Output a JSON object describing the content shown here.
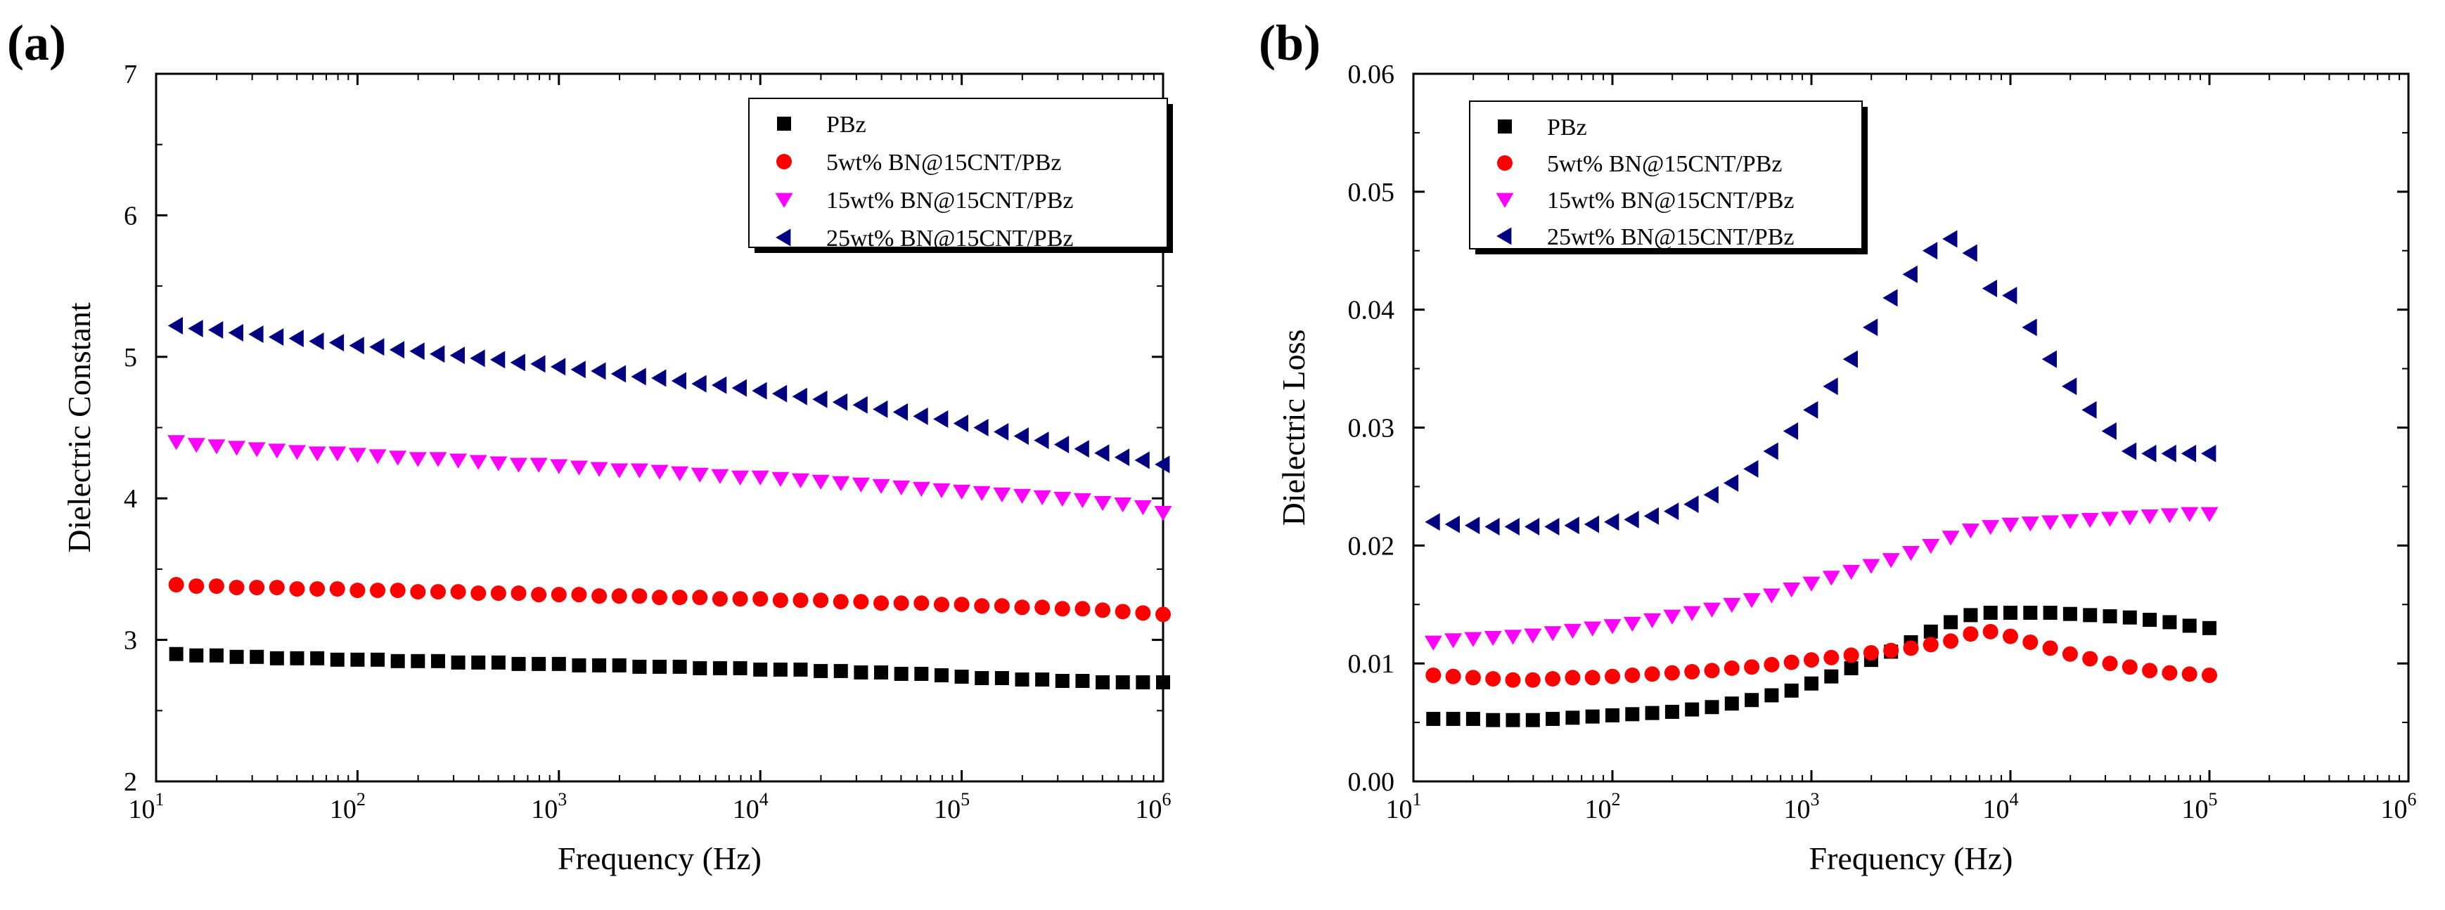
{
  "colors": {
    "pbz": "#000000",
    "bn5": "#ff0000",
    "bn15": "#ff00ff",
    "bn25": "#000080"
  },
  "chart_data": [
    {
      "id": "a",
      "panel_label": "(a)",
      "type": "scatter",
      "xlabel": "Frequency (Hz)",
      "ylabel": "Dielectric Constant",
      "xscale": "log",
      "xlim": [
        10,
        1000000
      ],
      "ylim": [
        2,
        7
      ],
      "xticks": [
        1,
        2,
        3,
        4,
        5,
        6
      ],
      "yticks": [
        2,
        3,
        4,
        5,
        6,
        7
      ],
      "ytick_labels": [
        "2",
        "3",
        "4",
        "5",
        "6",
        "7"
      ],
      "legend_position": "top-right",
      "x_log_start": 1.1,
      "x_log_step": 0.1,
      "series": [
        {
          "name": "PBz",
          "marker": "square",
          "color_key": "pbz",
          "values": [
            2.9,
            2.89,
            2.89,
            2.88,
            2.88,
            2.87,
            2.87,
            2.87,
            2.86,
            2.86,
            2.86,
            2.85,
            2.85,
            2.85,
            2.84,
            2.84,
            2.84,
            2.83,
            2.83,
            2.83,
            2.82,
            2.82,
            2.82,
            2.81,
            2.81,
            2.81,
            2.8,
            2.8,
            2.8,
            2.79,
            2.79,
            2.79,
            2.78,
            2.78,
            2.77,
            2.77,
            2.76,
            2.76,
            2.75,
            2.74,
            2.73,
            2.73,
            2.72,
            2.72,
            2.71,
            2.71,
            2.7,
            2.7,
            2.7,
            2.7
          ]
        },
        {
          "name": "5wt% BN@15CNT/PBz",
          "marker": "circle",
          "color_key": "bn5",
          "values": [
            3.39,
            3.38,
            3.38,
            3.37,
            3.37,
            3.37,
            3.36,
            3.36,
            3.36,
            3.35,
            3.35,
            3.35,
            3.34,
            3.34,
            3.34,
            3.33,
            3.33,
            3.33,
            3.32,
            3.32,
            3.32,
            3.31,
            3.31,
            3.31,
            3.3,
            3.3,
            3.3,
            3.29,
            3.29,
            3.29,
            3.28,
            3.28,
            3.28,
            3.27,
            3.27,
            3.26,
            3.26,
            3.26,
            3.25,
            3.25,
            3.24,
            3.24,
            3.23,
            3.23,
            3.22,
            3.22,
            3.21,
            3.2,
            3.19,
            3.18
          ]
        },
        {
          "name": "15wt% BN@15CNT/PBz",
          "marker": "triangle-down",
          "color_key": "bn15",
          "values": [
            4.4,
            4.38,
            4.37,
            4.36,
            4.35,
            4.34,
            4.33,
            4.32,
            4.32,
            4.31,
            4.3,
            4.29,
            4.28,
            4.28,
            4.27,
            4.26,
            4.25,
            4.24,
            4.24,
            4.23,
            4.22,
            4.21,
            4.2,
            4.2,
            4.19,
            4.18,
            4.17,
            4.16,
            4.15,
            4.15,
            4.14,
            4.13,
            4.12,
            4.11,
            4.1,
            4.09,
            4.08,
            4.07,
            4.06,
            4.05,
            4.04,
            4.03,
            4.02,
            4.01,
            4.0,
            3.99,
            3.97,
            3.96,
            3.94,
            3.9
          ]
        },
        {
          "name": "25wt% BN@15CNT/PBz",
          "marker": "triangle-left",
          "color_key": "bn25",
          "values": [
            5.22,
            5.2,
            5.19,
            5.17,
            5.16,
            5.14,
            5.13,
            5.11,
            5.1,
            5.08,
            5.07,
            5.05,
            5.04,
            5.02,
            5.01,
            4.99,
            4.98,
            4.96,
            4.95,
            4.93,
            4.91,
            4.9,
            4.88,
            4.86,
            4.85,
            4.83,
            4.81,
            4.8,
            4.78,
            4.76,
            4.74,
            4.72,
            4.7,
            4.68,
            4.66,
            4.63,
            4.61,
            4.58,
            4.56,
            4.53,
            4.5,
            4.47,
            4.44,
            4.41,
            4.38,
            4.35,
            4.32,
            4.29,
            4.27,
            4.24
          ]
        }
      ]
    },
    {
      "id": "b",
      "panel_label": "(b)",
      "type": "scatter",
      "xlabel": "Frequency (Hz)",
      "ylabel": "Dielectric Loss",
      "xscale": "log",
      "xlim": [
        10,
        1000000
      ],
      "ylim": [
        0,
        0.06
      ],
      "xticks": [
        1,
        2,
        3,
        4,
        5,
        6
      ],
      "yticks": [
        0,
        0.01,
        0.02,
        0.03,
        0.04,
        0.05,
        0.06
      ],
      "ytick_labels": [
        "0.00",
        "0.01",
        "0.02",
        "0.03",
        "0.04",
        "0.05",
        "0.06"
      ],
      "legend_position": "top-left",
      "x_log_start": 1.1,
      "x_log_step": 0.1,
      "series": [
        {
          "name": "PBz",
          "marker": "square",
          "color_key": "pbz",
          "values": [
            0.0053,
            0.0053,
            0.0053,
            0.0052,
            0.0052,
            0.0052,
            0.0053,
            0.0054,
            0.0055,
            0.0056,
            0.0057,
            0.0058,
            0.0059,
            0.0061,
            0.0063,
            0.0066,
            0.0069,
            0.0073,
            0.0077,
            0.0083,
            0.0089,
            0.0096,
            0.0103,
            0.011,
            0.0118,
            0.0127,
            0.0135,
            0.0141,
            0.0143,
            0.0143,
            0.0143,
            0.0143,
            0.0142,
            0.0141,
            0.014,
            0.0139,
            0.0137,
            0.0135,
            0.0132,
            0.013
          ]
        },
        {
          "name": "5wt% BN@15CNT/PBz",
          "marker": "circle",
          "color_key": "bn5",
          "values": [
            0.009,
            0.0089,
            0.0088,
            0.0087,
            0.0086,
            0.0086,
            0.0087,
            0.0088,
            0.0088,
            0.0089,
            0.009,
            0.0091,
            0.0092,
            0.0093,
            0.0094,
            0.0096,
            0.0097,
            0.0099,
            0.0101,
            0.0103,
            0.0105,
            0.0107,
            0.0109,
            0.0111,
            0.0113,
            0.0116,
            0.0119,
            0.0125,
            0.0127,
            0.0123,
            0.0118,
            0.0113,
            0.0108,
            0.0104,
            0.01,
            0.0097,
            0.0094,
            0.0092,
            0.0091,
            0.009
          ]
        },
        {
          "name": "15wt% BN@15CNT/PBz",
          "marker": "triangle-down",
          "color_key": "bn15",
          "values": [
            0.0118,
            0.012,
            0.0121,
            0.0122,
            0.0123,
            0.0124,
            0.0126,
            0.0128,
            0.013,
            0.0132,
            0.0134,
            0.0137,
            0.014,
            0.0143,
            0.0146,
            0.015,
            0.0154,
            0.0158,
            0.0163,
            0.0168,
            0.0173,
            0.0178,
            0.0183,
            0.0188,
            0.0194,
            0.02,
            0.0207,
            0.0213,
            0.0216,
            0.0218,
            0.0219,
            0.022,
            0.0221,
            0.0222,
            0.0223,
            0.0224,
            0.0225,
            0.0226,
            0.0227,
            0.0227
          ]
        },
        {
          "name": "25wt% BN@15CNT/PBz",
          "marker": "triangle-left",
          "color_key": "bn25",
          "values": [
            0.022,
            0.0218,
            0.0217,
            0.0216,
            0.0216,
            0.0216,
            0.0216,
            0.0217,
            0.0218,
            0.022,
            0.0222,
            0.0225,
            0.0229,
            0.0235,
            0.0243,
            0.0253,
            0.0265,
            0.028,
            0.0297,
            0.0315,
            0.0335,
            0.0358,
            0.0385,
            0.041,
            0.043,
            0.045,
            0.046,
            0.0448,
            0.0418,
            0.0412,
            0.0385,
            0.0358,
            0.0335,
            0.0315,
            0.0297,
            0.028,
            0.0278,
            0.0278,
            0.0278,
            0.0278
          ]
        }
      ]
    }
  ]
}
